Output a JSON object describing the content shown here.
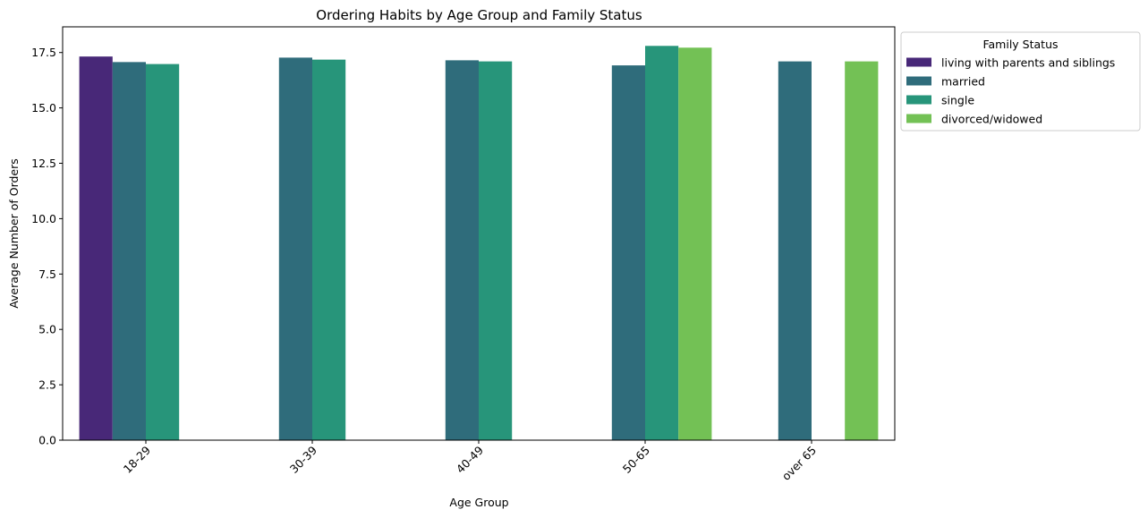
{
  "chart_data": {
    "type": "bar",
    "title": "Ordering Habits by Age Group and Family Status",
    "xlabel": "Age Group",
    "ylabel": "Average Number of Orders",
    "categories": [
      "18-29",
      "30-39",
      "40-49",
      "50-65",
      "over 65"
    ],
    "ylim": [
      0,
      18.66
    ],
    "yticks": [
      "0.0",
      "2.5",
      "5.0",
      "7.5",
      "10.0",
      "12.5",
      "15.0",
      "17.5"
    ],
    "grid": false,
    "legend": {
      "title": "Family Status",
      "placement": "outside top-right"
    },
    "series": [
      {
        "name": "living with parents and siblings",
        "color": "#482878",
        "values": [
          17.32,
          null,
          null,
          null,
          null
        ]
      },
      {
        "name": "married",
        "color": "#2f6c7b",
        "values": [
          17.07,
          17.27,
          17.15,
          16.92,
          17.1
        ]
      },
      {
        "name": "single",
        "color": "#27957a",
        "values": [
          16.98,
          17.18,
          17.1,
          17.8,
          null
        ]
      },
      {
        "name": "divorced/widowed",
        "color": "#73c155",
        "values": [
          null,
          null,
          null,
          17.72,
          17.1
        ]
      }
    ]
  }
}
